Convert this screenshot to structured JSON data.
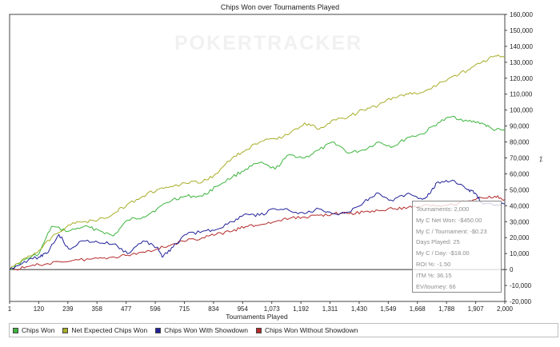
{
  "watermark": "POKERTRACKER",
  "chart_data": {
    "type": "line",
    "title": "Chips Won over Tournaments Played",
    "xlabel": "Tournaments Played",
    "ylabel": "",
    "y_unit_label": "⁒",
    "xlim": [
      1,
      2000
    ],
    "ylim": [
      -20000,
      160000
    ],
    "x_ticks": [
      "1",
      "120",
      "239",
      "358",
      "477",
      "596",
      "715",
      "834",
      "954",
      "1,073",
      "1,192",
      "1,311",
      "1,430",
      "1,549",
      "1,668",
      "1,788",
      "1,907",
      "2,000"
    ],
    "y_ticks": [
      "160,000",
      "150,000",
      "140,000",
      "130,000",
      "120,000",
      "110,000",
      "100,000",
      "90,000",
      "80,000",
      "70,000",
      "60,000",
      "50,000",
      "40,000",
      "30,000",
      "20,000",
      "10,000",
      "0",
      "-10,000",
      "-20,000"
    ],
    "grid": false,
    "legend_position": "bottom",
    "series": [
      {
        "name": "Chips Won",
        "color": "#3db53d",
        "x": [
          1,
          60,
          120,
          170,
          239,
          300,
          358,
          420,
          477,
          540,
          596,
          660,
          715,
          780,
          834,
          900,
          954,
          1010,
          1073,
          1130,
          1192,
          1250,
          1311,
          1370,
          1430,
          1490,
          1549,
          1610,
          1668,
          1730,
          1788,
          1850,
          1907,
          1950,
          2000
        ],
        "y": [
          0,
          6000,
          10000,
          27000,
          24000,
          27000,
          25000,
          21000,
          31000,
          33000,
          38000,
          44000,
          46000,
          46000,
          52000,
          58000,
          63000,
          67000,
          63000,
          72000,
          70000,
          75000,
          80000,
          73000,
          75000,
          80000,
          77000,
          83000,
          85000,
          92000,
          96000,
          93000,
          92000,
          88000,
          87000
        ]
      },
      {
        "name": "Net Expected Chips Won",
        "color": "#a8ad28",
        "x": [
          1,
          60,
          120,
          170,
          239,
          300,
          358,
          420,
          477,
          540,
          596,
          660,
          715,
          780,
          834,
          900,
          954,
          1010,
          1073,
          1130,
          1192,
          1250,
          1311,
          1370,
          1430,
          1490,
          1549,
          1610,
          1668,
          1730,
          1788,
          1850,
          1907,
          1960,
          2000
        ],
        "y": [
          0,
          7000,
          12000,
          20000,
          28000,
          30000,
          31000,
          35000,
          41000,
          46000,
          50000,
          52000,
          54000,
          55000,
          60000,
          70000,
          75000,
          80000,
          82000,
          85000,
          92000,
          88000,
          94000,
          96000,
          100000,
          103000,
          108000,
          110000,
          111000,
          116000,
          121000,
          125000,
          130000,
          134000,
          133000
        ]
      },
      {
        "name": "Chips Won With Showdown",
        "color": "#22229a",
        "x": [
          1,
          60,
          120,
          150,
          200,
          239,
          300,
          358,
          420,
          477,
          540,
          596,
          620,
          660,
          715,
          780,
          834,
          900,
          954,
          1010,
          1073,
          1130,
          1192,
          1250,
          1311,
          1370,
          1430,
          1490,
          1549,
          1610,
          1668,
          1700,
          1730,
          1788,
          1850,
          1880,
          1907,
          1960,
          2000
        ],
        "y": [
          0,
          5000,
          8000,
          10000,
          22000,
          13000,
          18000,
          17000,
          16000,
          10000,
          18000,
          14000,
          8000,
          14000,
          22000,
          24000,
          25000,
          30000,
          35000,
          34000,
          38000,
          37000,
          35000,
          38000,
          35000,
          36000,
          42000,
          48000,
          43000,
          48000,
          44000,
          48000,
          55000,
          56000,
          50000,
          48000,
          42000,
          40000,
          41000
        ]
      },
      {
        "name": "Chips Won Without Showdown",
        "color": "#b52a2a",
        "x": [
          1,
          60,
          120,
          200,
          280,
          358,
          420,
          477,
          540,
          596,
          660,
          715,
          780,
          834,
          900,
          954,
          1010,
          1073,
          1130,
          1192,
          1250,
          1311,
          1370,
          1430,
          1490,
          1549,
          1610,
          1668,
          1730,
          1788,
          1850,
          1907,
          1960,
          2000
        ],
        "y": [
          0,
          1000,
          3000,
          5000,
          6000,
          7000,
          8000,
          9000,
          11000,
          13000,
          16000,
          18000,
          20000,
          22000,
          24000,
          27000,
          28000,
          30000,
          32000,
          33000,
          34000,
          35000,
          35000,
          36000,
          37000,
          38000,
          39000,
          40000,
          40000,
          41000,
          43000,
          45000,
          46000,
          44000
        ]
      }
    ]
  },
  "tooltip": {
    "lines": [
      "Tournaments: 2,000",
      "My C Net Won: -$450.00",
      "My C / Tournament: -$0.23",
      "Days Played: 25",
      "My C / Day: -$18.00",
      "ROI %: -1.50",
      "ITM %: 36.15",
      "EV/tourney: 66"
    ]
  }
}
